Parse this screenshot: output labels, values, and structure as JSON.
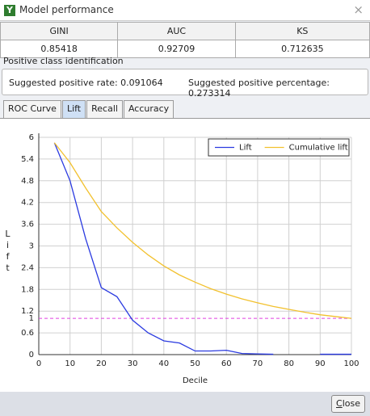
{
  "window": {
    "title": "Model performance",
    "icon": "Y",
    "close_glyph": "×"
  },
  "table": {
    "headers": [
      "GINI",
      "AUC",
      "KS"
    ],
    "rows": [
      [
        "0.85418",
        "0.92709",
        "0.712635"
      ]
    ]
  },
  "section": {
    "title": "Positive class identification",
    "suggested_rate": "Suggested positive rate: 0.091064",
    "suggested_percentage": "Suggested positive percentage: 0.273314"
  },
  "tabs": {
    "items": [
      "ROC Curve",
      "Lift",
      "Recall",
      "Accuracy"
    ],
    "selected": 1
  },
  "chart_data": {
    "type": "line",
    "x_label": "Decile",
    "y_label": "Lift",
    "x": [
      5,
      10,
      15,
      20,
      25,
      30,
      35,
      40,
      45,
      50,
      55,
      60,
      65,
      70,
      75,
      80,
      85,
      90,
      95,
      100
    ],
    "series": [
      {
        "name": "Lift",
        "color": "#2a3ae0",
        "values": [
          5.85,
          4.8,
          3.2,
          1.85,
          1.6,
          0.95,
          0.6,
          0.38,
          0.32,
          0.1,
          0.1,
          0.12,
          0.03,
          0.02,
          0.01,
          null,
          null,
          0.01,
          0.01,
          0.01
        ]
      },
      {
        "name": "Cumulative lift",
        "color": "#f2c12e",
        "values": [
          5.85,
          5.3,
          4.6,
          3.95,
          3.5,
          3.1,
          2.75,
          2.45,
          2.2,
          2.0,
          1.82,
          1.67,
          1.54,
          1.43,
          1.33,
          1.25,
          1.17,
          1.1,
          1.05,
          1.0
        ]
      }
    ],
    "xlim": [
      0,
      100
    ],
    "xticks": [
      0,
      10,
      20,
      30,
      40,
      50,
      60,
      70,
      80,
      90,
      100
    ],
    "ylim": [
      0,
      6
    ],
    "yticks": [
      0,
      0.6,
      1.2,
      1.8,
      2.4,
      3,
      3.6,
      4.2,
      4.8,
      5.4,
      6
    ],
    "reference_line": {
      "value": 1,
      "color": "#e040e0"
    },
    "grid": true,
    "legend": "top-right"
  },
  "buttons": {
    "close": "Close"
  }
}
